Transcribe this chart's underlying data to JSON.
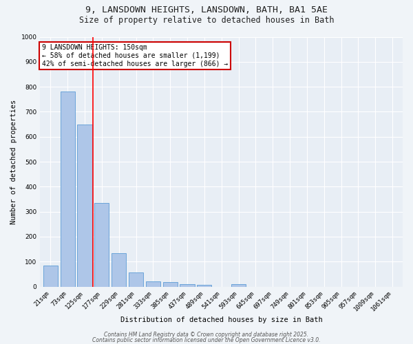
{
  "title_line1": "9, LANSDOWN HEIGHTS, LANSDOWN, BATH, BA1 5AE",
  "title_line2": "Size of property relative to detached houses in Bath",
  "xlabel": "Distribution of detached houses by size in Bath",
  "ylabel": "Number of detached properties",
  "bar_labels": [
    "21sqm",
    "73sqm",
    "125sqm",
    "177sqm",
    "229sqm",
    "281sqm",
    "333sqm",
    "385sqm",
    "437sqm",
    "489sqm",
    "541sqm",
    "593sqm",
    "645sqm",
    "697sqm",
    "749sqm",
    "801sqm",
    "853sqm",
    "905sqm",
    "957sqm",
    "1009sqm",
    "1061sqm"
  ],
  "bar_values": [
    85,
    780,
    648,
    335,
    133,
    58,
    22,
    18,
    10,
    8,
    0,
    10,
    0,
    0,
    0,
    0,
    0,
    0,
    0,
    0,
    0
  ],
  "bar_color": "#aec6e8",
  "bar_edgecolor": "#5b9bd5",
  "background_color": "#e8eef5",
  "fig_background_color": "#f0f4f8",
  "grid_color": "#ffffff",
  "ylim": [
    0,
    1000
  ],
  "yticks": [
    0,
    100,
    200,
    300,
    400,
    500,
    600,
    700,
    800,
    900,
    1000
  ],
  "red_line_x": 2.48,
  "annotation_text": "9 LANSDOWN HEIGHTS: 150sqm\n← 58% of detached houses are smaller (1,199)\n42% of semi-detached houses are larger (866) →",
  "annotation_box_color": "#ffffff",
  "annotation_box_edgecolor": "#cc0000",
  "footer_line1": "Contains HM Land Registry data © Crown copyright and database right 2025.",
  "footer_line2": "Contains public sector information licensed under the Open Government Licence v3.0.",
  "title_fontsize": 9.5,
  "subtitle_fontsize": 8.5,
  "axis_label_fontsize": 7.5,
  "tick_fontsize": 6.5,
  "annotation_fontsize": 7,
  "footer_fontsize": 5.5
}
